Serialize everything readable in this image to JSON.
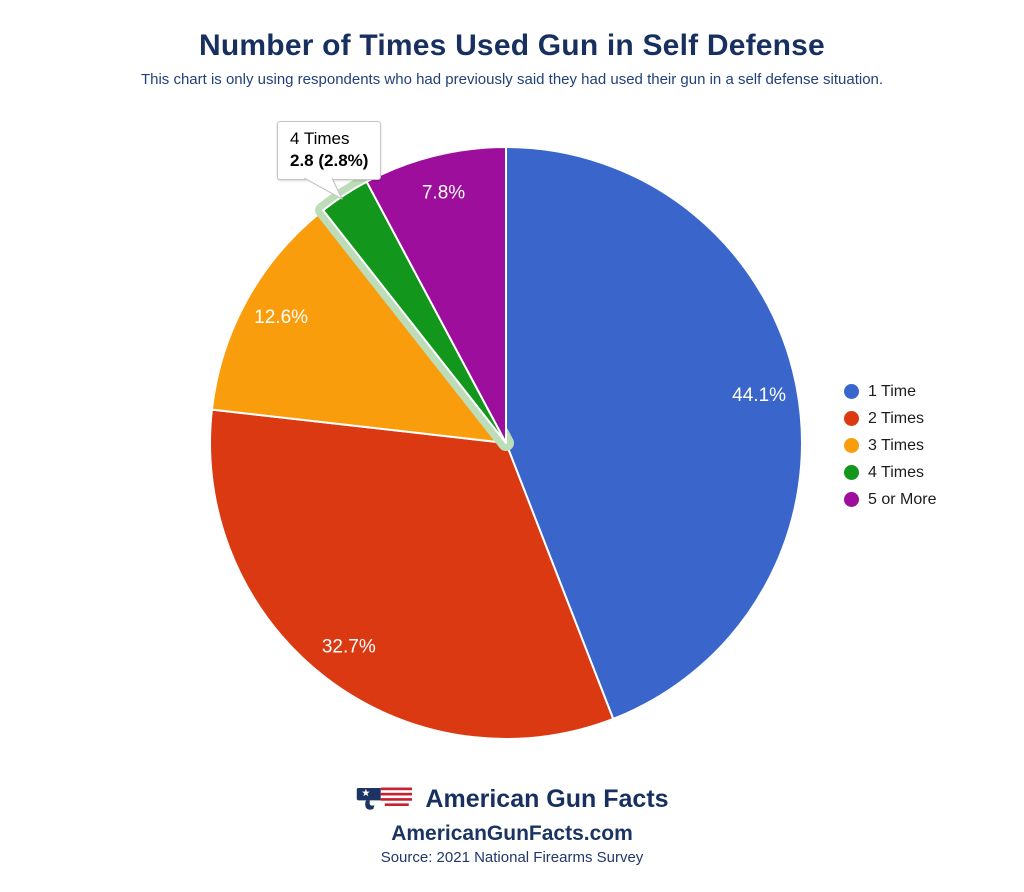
{
  "header": {
    "title": "Number of Times Used Gun in Self Defense",
    "subtitle": "This chart is only using respondents who had previously said they had used their gun in a self defense situation."
  },
  "chart_data": {
    "type": "pie",
    "title": "Number of Times Used Gun in Self Defense",
    "categories": [
      "1 Time",
      "2 Times",
      "3 Times",
      "4 Times",
      "5 or More"
    ],
    "values": [
      44.1,
      32.7,
      12.6,
      2.8,
      7.8
    ],
    "slice_labels": [
      "44.1%",
      "32.7%",
      "12.6%",
      "",
      "7.8%"
    ],
    "colors": [
      "#3A66CC",
      "#DB3912",
      "#F99D0D",
      "#12961B",
      "#9D0E9D"
    ],
    "slice_label_color": "#ffffff",
    "start_angle_deg": 0,
    "direction": "clockwise",
    "legend_position": "right",
    "hovered_slice": "4 Times",
    "hover_highlight_color": "#bcddb8"
  },
  "tooltip": {
    "label": "4 Times",
    "value_text": "2.8 (2.8%)"
  },
  "legend": {
    "items": [
      {
        "label": "1 Time",
        "color": "#3A66CC"
      },
      {
        "label": "2 Times",
        "color": "#DB3912"
      },
      {
        "label": "3 Times",
        "color": "#F99D0D"
      },
      {
        "label": "4 Times",
        "color": "#12961B"
      },
      {
        "label": "5 or More",
        "color": "#9D0E9D"
      }
    ]
  },
  "footer": {
    "brand": "American Gun Facts",
    "website": "AmericanGunFacts.com",
    "source": "Source: 2021 National Firearms Survey"
  }
}
